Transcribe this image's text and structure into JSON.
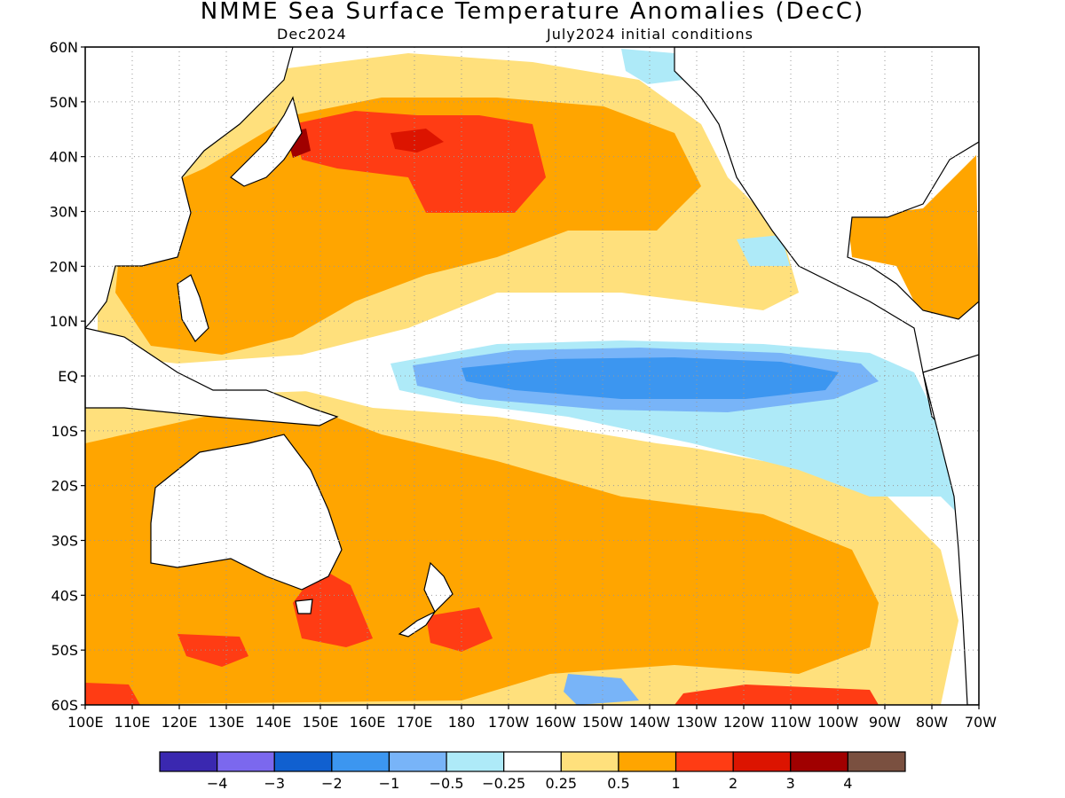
{
  "title": "NMME Sea Surface Temperature Anomalies (DecC)",
  "subtitle_left": "Dec2024",
  "subtitle_right": "July2024 initial conditions",
  "lat_labels": [
    "60N",
    "50N",
    "40N",
    "30N",
    "20N",
    "10N",
    "EQ",
    "10S",
    "20S",
    "30S",
    "40S",
    "50S",
    "60S"
  ],
  "lon_labels": [
    "100E",
    "110E",
    "120E",
    "130E",
    "140E",
    "150E",
    "160E",
    "170E",
    "180",
    "170W",
    "160W",
    "150W",
    "140W",
    "130W",
    "120W",
    "110W",
    "100W",
    "90W",
    "80W",
    "70W"
  ],
  "colorbar": {
    "colors": [
      "#3a28b0",
      "#7b68ee",
      "#1060d0",
      "#3c96f0",
      "#78b4f8",
      "#aeeaf8",
      "#ffffff",
      "#ffe07c",
      "#ffa500",
      "#ff3c14",
      "#dc1400",
      "#a00000",
      "#7a5040"
    ],
    "labels": [
      "−4",
      "−3",
      "−2",
      "−1",
      "−0.5",
      "−0.25",
      "0.25",
      "0.5",
      "1",
      "2",
      "3",
      "4"
    ]
  },
  "colors": {
    "land_outline": "#000000",
    "grid": "#999999"
  }
}
